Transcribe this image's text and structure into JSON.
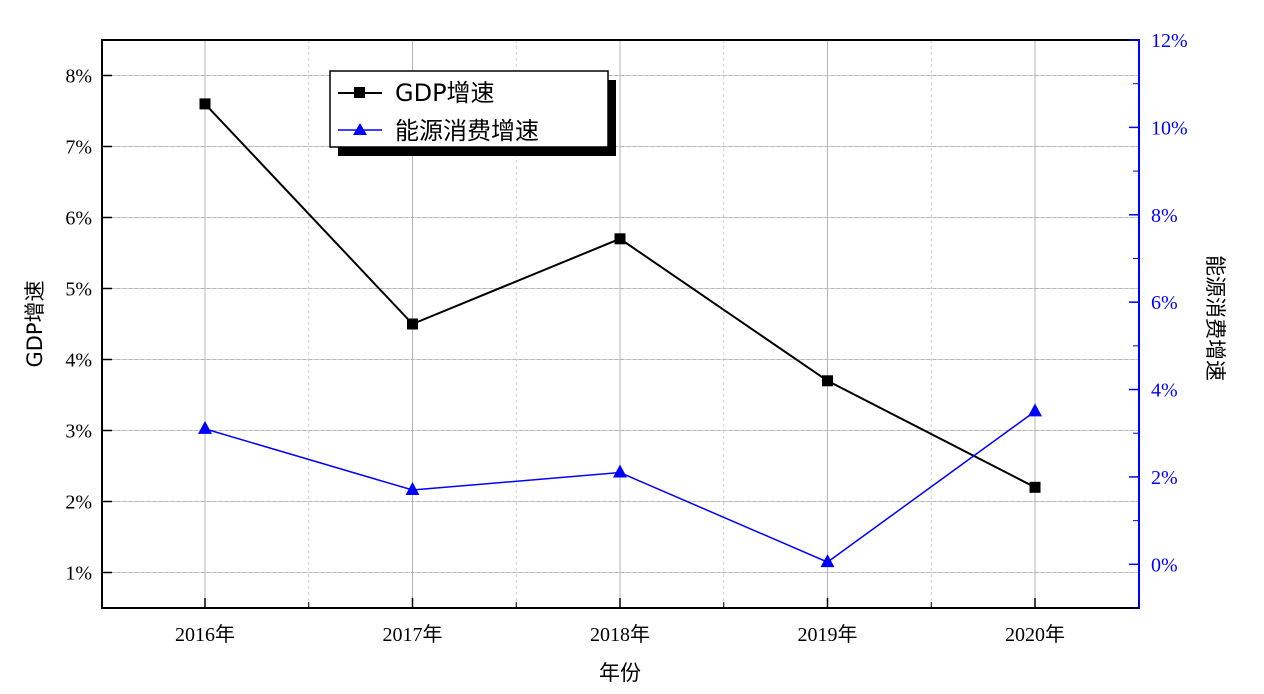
{
  "chart_data": {
    "type": "line",
    "categories": [
      "2016年",
      "2017年",
      "2018年",
      "2019年",
      "2020年"
    ],
    "xlabel": "年份",
    "ylabel_left": "GDP增速",
    "ylabel_right": "能源消费增速",
    "left_ticks": [
      "1%",
      "2%",
      "3%",
      "4%",
      "5%",
      "6%",
      "7%",
      "8%"
    ],
    "right_ticks": [
      "0%",
      "2%",
      "4%",
      "6%",
      "8%",
      "10%",
      "12%"
    ],
    "ylim_left": [
      0.5,
      8.5
    ],
    "ylim_right": [
      -1.0,
      12.0
    ],
    "grid": true,
    "legend_position": "top-left",
    "series": [
      {
        "name": "GDP增速",
        "axis": "left",
        "values": [
          7.6,
          4.5,
          5.7,
          3.7,
          2.2
        ],
        "color": "#000000",
        "marker": "square"
      },
      {
        "name": "能源消费增速",
        "axis": "right",
        "values": [
          3.1,
          1.7,
          2.1,
          0.05,
          3.5
        ],
        "color": "#0000ff",
        "marker": "triangle"
      }
    ]
  }
}
